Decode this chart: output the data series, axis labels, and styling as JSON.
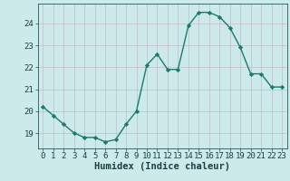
{
  "x": [
    0,
    1,
    2,
    3,
    4,
    5,
    6,
    7,
    8,
    9,
    10,
    11,
    12,
    13,
    14,
    15,
    16,
    17,
    18,
    19,
    20,
    21,
    22,
    23
  ],
  "y": [
    20.2,
    19.8,
    19.4,
    19.0,
    18.8,
    18.8,
    18.6,
    18.7,
    19.4,
    20.0,
    22.1,
    22.6,
    21.9,
    21.9,
    23.9,
    24.5,
    24.5,
    24.3,
    23.8,
    22.9,
    21.7,
    21.7,
    21.1,
    21.1
  ],
  "line_color": "#1a7a6e",
  "marker": "D",
  "markersize": 2.2,
  "linewidth": 1.0,
  "bg_color": "#cceaea",
  "xlabel": "Humidex (Indice chaleur)",
  "xlabel_fontsize": 7.5,
  "tick_fontsize": 6.5,
  "ylim": [
    18.3,
    24.9
  ],
  "yticks": [
    19,
    20,
    21,
    22,
    23,
    24
  ],
  "xlim": [
    -0.5,
    23.5
  ],
  "xticks": [
    0,
    1,
    2,
    3,
    4,
    5,
    6,
    7,
    8,
    9,
    10,
    11,
    12,
    13,
    14,
    15,
    16,
    17,
    18,
    19,
    20,
    21,
    22,
    23
  ]
}
